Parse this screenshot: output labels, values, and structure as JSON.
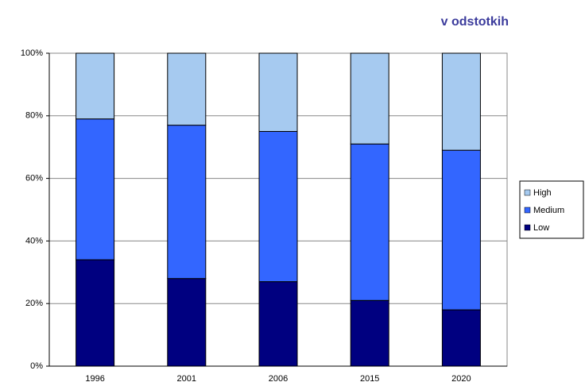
{
  "chart_data": {
    "type": "stacked_bar",
    "title": "v odstotkih",
    "categories": [
      "1996",
      "2001",
      "2006",
      "2015",
      "2020"
    ],
    "series": [
      {
        "name": "Low",
        "color": "#000080",
        "values": [
          34,
          28,
          27,
          21,
          18
        ]
      },
      {
        "name": "Medium",
        "color": "#3366ff",
        "values": [
          45,
          49,
          48,
          50,
          51
        ]
      },
      {
        "name": "High",
        "color": "#a6caf0",
        "values": [
          21,
          23,
          25,
          29,
          31
        ]
      }
    ],
    "ylim": [
      0,
      100
    ],
    "yticks": [
      {
        "value": 0,
        "label": "0%"
      },
      {
        "value": 20,
        "label": "20%"
      },
      {
        "value": 40,
        "label": "40%"
      },
      {
        "value": 60,
        "label": "60%"
      },
      {
        "value": 80,
        "label": "80%"
      },
      {
        "value": 100,
        "label": "100%"
      }
    ],
    "grid": true,
    "legend": "right"
  }
}
